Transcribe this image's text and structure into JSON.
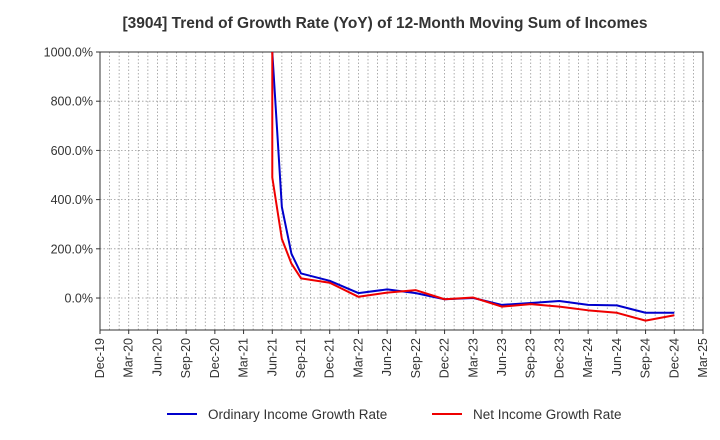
{
  "chart_data": {
    "type": "line",
    "title": "[3904]  Trend of Growth Rate (YoY) of 12-Month Moving Sum of Incomes",
    "xlabel": "",
    "ylabel": "",
    "ylim": [
      -130,
      1000
    ],
    "yticks": [
      0,
      200,
      400,
      600,
      800,
      1000
    ],
    "ytick_labels": [
      "0.0%",
      "200.0%",
      "400.0%",
      "600.0%",
      "800.0%",
      "1000.0%"
    ],
    "x_tick_labels": [
      "Dec-19",
      "Mar-20",
      "Jun-20",
      "Sep-20",
      "Dec-20",
      "Mar-21",
      "Jun-21",
      "Sep-21",
      "Dec-21",
      "Mar-22",
      "Jun-22",
      "Sep-22",
      "Dec-22",
      "Mar-23",
      "Jun-23",
      "Sep-23",
      "Dec-23",
      "Mar-24",
      "Jun-24",
      "Sep-24",
      "Dec-24",
      "Mar-25"
    ],
    "x": [
      "Dec-19",
      "Jan-20",
      "Feb-20",
      "Mar-20",
      "Apr-20",
      "May-20",
      "Jun-20",
      "Jul-20",
      "Aug-20",
      "Sep-20",
      "Oct-20",
      "Nov-20",
      "Dec-20",
      "Jan-21",
      "Feb-21",
      "Mar-21",
      "Apr-21",
      "May-21",
      "Jun-21",
      "Jul-21",
      "Aug-21",
      "Sep-21",
      "Oct-21",
      "Nov-21",
      "Dec-21",
      "Jan-22",
      "Feb-22",
      "Mar-22",
      "Apr-22",
      "May-22",
      "Jun-22",
      "Jul-22",
      "Aug-22",
      "Sep-22",
      "Oct-22",
      "Nov-22",
      "Dec-22",
      "Jan-23",
      "Feb-23",
      "Mar-23",
      "Apr-23",
      "May-23",
      "Jun-23",
      "Jul-23",
      "Aug-23",
      "Sep-23",
      "Oct-23",
      "Nov-23",
      "Dec-23",
      "Jan-24",
      "Feb-24",
      "Mar-24",
      "Apr-24",
      "May-24",
      "Jun-24",
      "Jul-24",
      "Aug-24",
      "Sep-24",
      "Oct-24",
      "Nov-24",
      "Dec-24",
      "Jan-25",
      "Feb-25",
      "Mar-25"
    ],
    "grid": true,
    "legend_position": "bottom",
    "series": [
      {
        "name": "Ordinary Income Growth Rate",
        "color": "#0000cc",
        "points": [
          {
            "x": "Jun-21",
            "y": 1000
          },
          {
            "x": "Jul-21",
            "y": 370
          },
          {
            "x": "Aug-21",
            "y": 180
          },
          {
            "x": "Sep-21",
            "y": 100
          },
          {
            "x": "Dec-21",
            "y": 70
          },
          {
            "x": "Mar-22",
            "y": 20
          },
          {
            "x": "Jun-22",
            "y": 35
          },
          {
            "x": "Sep-22",
            "y": 20
          },
          {
            "x": "Dec-22",
            "y": -5
          },
          {
            "x": "Mar-23",
            "y": 0
          },
          {
            "x": "Jun-23",
            "y": -28
          },
          {
            "x": "Sep-23",
            "y": -20
          },
          {
            "x": "Dec-23",
            "y": -12
          },
          {
            "x": "Mar-24",
            "y": -28
          },
          {
            "x": "Jun-24",
            "y": -30
          },
          {
            "x": "Sep-24",
            "y": -60
          },
          {
            "x": "Dec-24",
            "y": -60
          }
        ]
      },
      {
        "name": "Net Income Growth Rate",
        "color": "#ee0000",
        "points": [
          {
            "x": "Jun-21",
            "y": 1000
          },
          {
            "x": "Jun-21",
            "y": 490
          },
          {
            "x": "Jul-21",
            "y": 240
          },
          {
            "x": "Aug-21",
            "y": 140
          },
          {
            "x": "Sep-21",
            "y": 80
          },
          {
            "x": "Dec-21",
            "y": 62
          },
          {
            "x": "Mar-22",
            "y": 5
          },
          {
            "x": "Jun-22",
            "y": 22
          },
          {
            "x": "Sep-22",
            "y": 32
          },
          {
            "x": "Dec-22",
            "y": -5
          },
          {
            "x": "Mar-23",
            "y": 2
          },
          {
            "x": "Jun-23",
            "y": -35
          },
          {
            "x": "Sep-23",
            "y": -25
          },
          {
            "x": "Dec-23",
            "y": -35
          },
          {
            "x": "Mar-24",
            "y": -50
          },
          {
            "x": "Jun-24",
            "y": -60
          },
          {
            "x": "Sep-24",
            "y": -92
          },
          {
            "x": "Dec-24",
            "y": -70
          }
        ]
      }
    ]
  }
}
